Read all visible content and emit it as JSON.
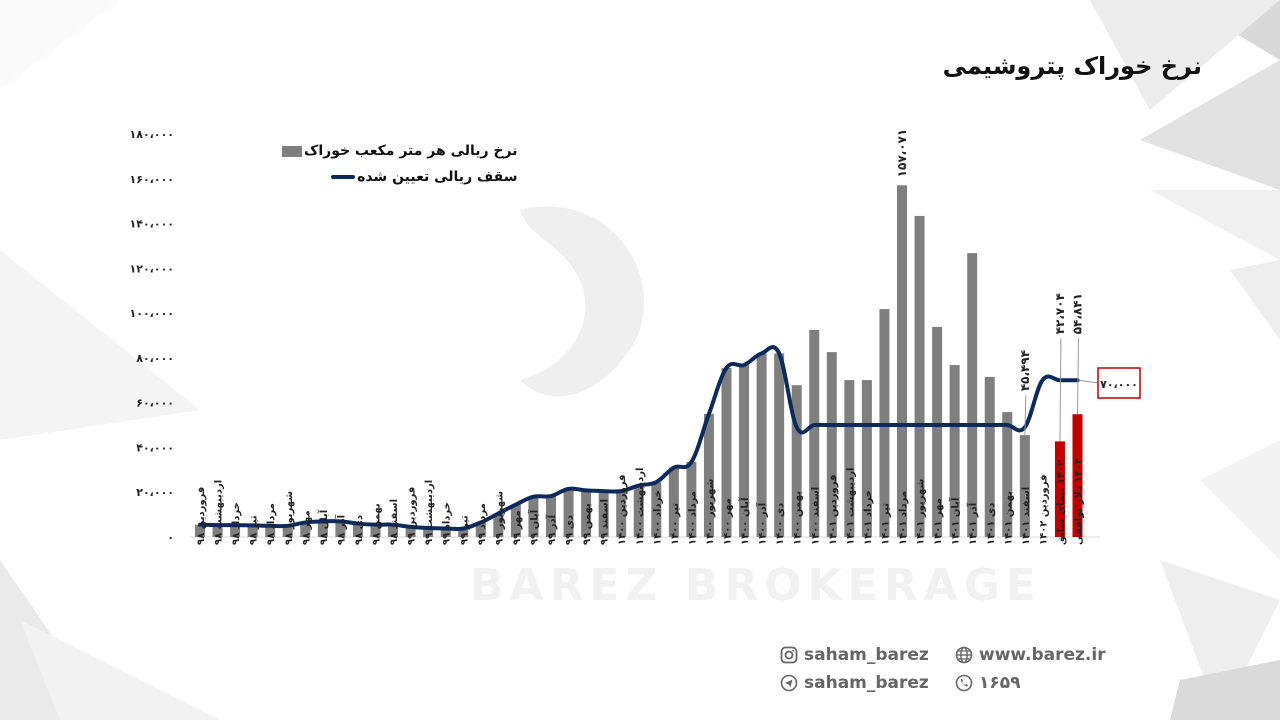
{
  "title": "نرخ خوراک پتروشیمی",
  "legend": {
    "bar_label": "نرخ ریالی هر متر مکعب خوراک",
    "line_label": "سقف ریالی تعیین شده"
  },
  "callout": {
    "label": "۷۰،۰۰۰",
    "color": "#c00000"
  },
  "colors": {
    "bar": "#7f7f7f",
    "bar_highlight": "#c00000",
    "line": "#0d2a5c"
  },
  "footer": {
    "instagram": "saham_barez",
    "telegram": "saham_barez",
    "website": "www.barez.ir",
    "phone": "۱۶۵۹"
  },
  "watermark": "BAREZ BROKERAGE",
  "chart_data": {
    "type": "bar",
    "title": "نرخ خوراک پتروشیمی",
    "xlabel": "",
    "ylabel": "",
    "ylim": [
      0,
      180000
    ],
    "yticks": [
      0,
      20000,
      40000,
      60000,
      80000,
      100000,
      120000,
      140000,
      160000,
      180000
    ],
    "ytick_labels": [
      "۰",
      "۲۰،۰۰۰",
      "۴۰،۰۰۰",
      "۶۰،۰۰۰",
      "۸۰،۰۰۰",
      "۱۰۰،۰۰۰",
      "۱۲۰،۰۰۰",
      "۱۴۰،۰۰۰",
      "۱۶۰،۰۰۰",
      "۱۸۰،۰۰۰"
    ],
    "grid": false,
    "legend_position": "top-left",
    "categories": [
      "فروردین ۹۸",
      "اردیبهشت ۹۸",
      "خرداد ۹۸",
      "تیر ۹۸",
      "مرداد ۹۸",
      "شهریور ۹۸",
      "مهر ۹۸",
      "آبان ۹۸",
      "آذر ۹۸",
      "دی ۹۸",
      "بهمن ۹۸",
      "اسفند ۹۸",
      "فروردین ۹۹",
      "اردیبهشت ۹۹",
      "خرداد ۹۹",
      "تیر ۹۹",
      "مرداد ۹۹",
      "شهریور ۹۹",
      "مهر ۹۹",
      "آبان ۹۹",
      "آذر ۹۹",
      "دی ۹۹",
      "بهمن ۹۹",
      "اسفند ۹۹",
      "فروردین ۱۴۰۰",
      "اردیبهشت ۱۴۰۰",
      "خرداد ۱۴۰۰",
      "تیر ۱۴۰۰",
      "مرداد ۱۴۰۰",
      "شهریور ۱۴۰۰",
      "مهر ۱۴۰۰",
      "آبان ۱۴۰۰",
      "آذر ۱۴۰۰",
      "دی ۱۴۰۰",
      "بهمن ۱۴۰۰",
      "اسفند ۱۴۰۰",
      "فروردین ۱۴۰۱",
      "اردیبهشت ۱۴۰۱",
      "خرداد ۱۴۰۱",
      "تیر ۱۴۰۱",
      "مرداد ۱۴۰۱",
      "شهریور ۱۴۰۱",
      "مهر ۱۴۰۱",
      "آبان ۱۴۰۱",
      "آذر ۱۴۰۱",
      "دی ۱۴۰۱",
      "بهمن ۱۴۰۱",
      "اسفند ۱۴۰۱",
      "فروردین ۱۴۰۲",
      "۱۴۰۲ نیمای سابق",
      "۱۴۰۲ دلار توافقی"
    ],
    "series": [
      {
        "name": "نرخ ریالی هر متر مکعب خوراک",
        "type": "bar",
        "values": [
          5500,
          5300,
          5300,
          5200,
          5000,
          5000,
          6500,
          7000,
          7000,
          6000,
          5500,
          5500,
          4500,
          4000,
          3800,
          3800,
          6500,
          10500,
          14500,
          18000,
          18300,
          21500,
          20800,
          20500,
          20500,
          23000,
          24500,
          31000,
          33500,
          55000,
          75500,
          76800,
          82000,
          82000,
          67800,
          92500,
          82600,
          70100,
          70100,
          101800,
          157071,
          143400,
          93800,
          76800,
          126800,
          71500,
          55800,
          45494,
          null,
          42704,
          54841
        ],
        "highlight_indices": [
          49,
          50
        ],
        "data_labels": {
          "40": "۱۵۷،۰۷۱",
          "47": "۴۵،۴۹۴",
          "49": "۴۲،۷۰۴",
          "50": "۵۴،۸۴۱"
        }
      },
      {
        "name": "سقف ریالی تعیین شده",
        "type": "line",
        "values": [
          5500,
          5300,
          5300,
          5200,
          5000,
          5000,
          6500,
          7000,
          7000,
          6000,
          5500,
          5500,
          4500,
          4000,
          3800,
          3800,
          6500,
          10500,
          14500,
          18000,
          18300,
          21500,
          20800,
          20500,
          20500,
          23000,
          24500,
          31000,
          33500,
          55000,
          75500,
          76800,
          82000,
          82000,
          49000,
          50000,
          50000,
          50000,
          50000,
          50000,
          50000,
          50000,
          50000,
          50000,
          50000,
          50000,
          50000,
          49000,
          70000,
          70000,
          70000
        ],
        "end_label": "۷۰،۰۰۰"
      }
    ]
  }
}
